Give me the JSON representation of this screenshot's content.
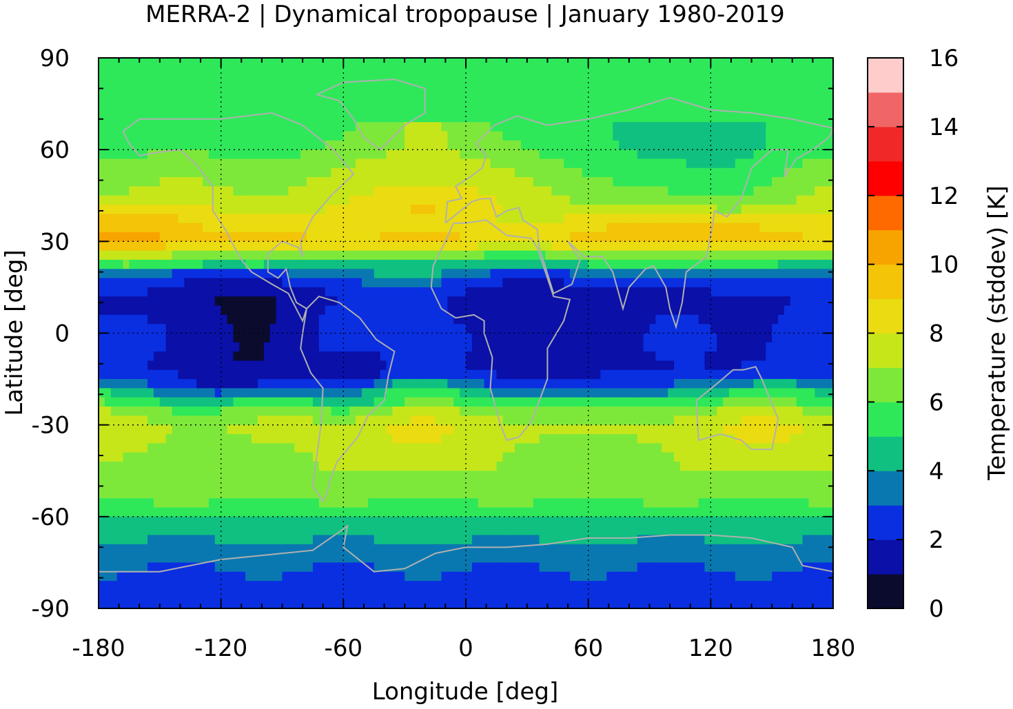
{
  "chart_data": {
    "type": "heatmap",
    "title": "MERRA-2 | Dynamical tropopause | January 1980-2019",
    "xlabel": "Longitude [deg]",
    "ylabel": "Latitude [deg]",
    "xlim": [
      -180,
      180
    ],
    "ylim": [
      -90,
      90
    ],
    "x_ticks": [
      "-180",
      "-120",
      "-60",
      "0",
      "60",
      "120",
      "180"
    ],
    "y_ticks": [
      "90",
      "60",
      "30",
      "0",
      "-30",
      "-60",
      "-90"
    ],
    "grid": true,
    "colorbar": {
      "label": "Temperature (stddev) [K]",
      "range": [
        0,
        16
      ],
      "ticks": [
        "0",
        "2",
        "4",
        "6",
        "8",
        "10",
        "12",
        "14",
        "16"
      ],
      "levels": [
        {
          "min": 0,
          "max": 1,
          "color": "#0b0b2e"
        },
        {
          "min": 1,
          "max": 2,
          "color": "#0a10a8"
        },
        {
          "min": 2,
          "max": 3,
          "color": "#0a2fe0"
        },
        {
          "min": 3,
          "max": 4,
          "color": "#0a78b0"
        },
        {
          "min": 4,
          "max": 5,
          "color": "#10c080"
        },
        {
          "min": 5,
          "max": 6,
          "color": "#2ee85a"
        },
        {
          "min": 6,
          "max": 7,
          "color": "#7ee83a"
        },
        {
          "min": 7,
          "max": 8,
          "color": "#c6e61a"
        },
        {
          "min": 8,
          "max": 9,
          "color": "#eadc10"
        },
        {
          "min": 9,
          "max": 10,
          "color": "#f3c408"
        },
        {
          "min": 10,
          "max": 11,
          "color": "#f8a400"
        },
        {
          "min": 11,
          "max": 12,
          "color": "#ff6a00"
        },
        {
          "min": 12,
          "max": 13,
          "color": "#ff0000"
        },
        {
          "min": 13,
          "max": 14,
          "color": "#f02828"
        },
        {
          "min": 14,
          "max": 15,
          "color": "#f06666"
        },
        {
          "min": 15,
          "max": 16,
          "color": "#ffcccc"
        }
      ]
    },
    "zonal_pattern": {
      "lat": [
        90,
        80,
        70,
        60,
        50,
        45,
        40,
        35,
        30,
        25,
        20,
        15,
        10,
        5,
        0,
        -5,
        -10,
        -15,
        -20,
        -25,
        -30,
        -35,
        -40,
        -45,
        -50,
        -55,
        -60,
        -65,
        -70,
        -75,
        -80,
        -85,
        -90
      ],
      "stddev": [
        5.5,
        5.5,
        5.5,
        5.8,
        6.8,
        7.2,
        7.8,
        8.6,
        9.2,
        6.0,
        3.5,
        2.0,
        1.6,
        1.8,
        1.9,
        1.9,
        1.8,
        2.5,
        4.5,
        6.5,
        7.6,
        7.4,
        7.0,
        6.8,
        6.5,
        6.0,
        5.0,
        4.5,
        3.6,
        3.2,
        2.8,
        2.4,
        2.2
      ]
    },
    "coastline_color": "#b0b0b0"
  }
}
